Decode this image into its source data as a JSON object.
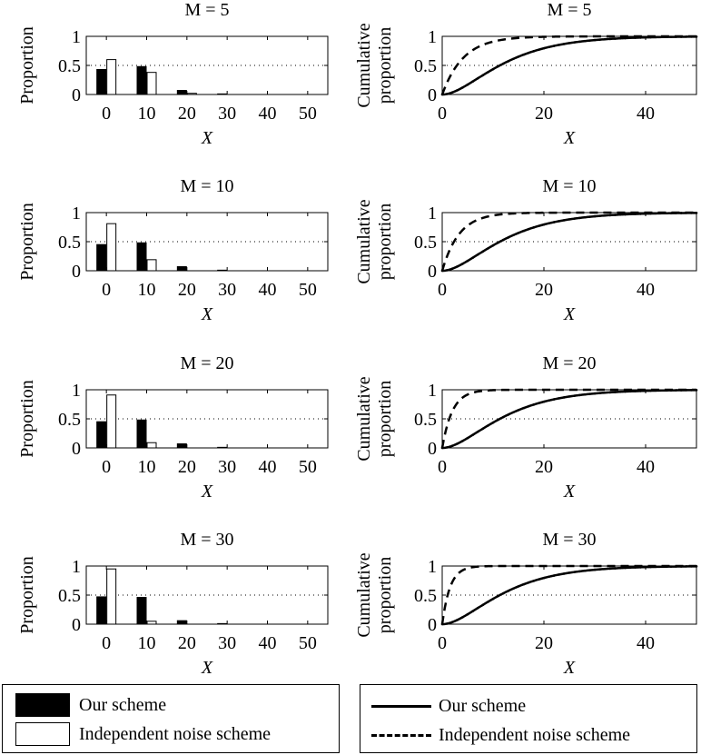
{
  "chart_data": [
    {
      "type": "bar",
      "title": "M = 5",
      "xlabel": "X",
      "ylabel": "Proportion",
      "x_ticks": [
        "0",
        "10",
        "20",
        "30",
        "40",
        "50"
      ],
      "y_ticks": [
        "0",
        "0.5",
        "1"
      ],
      "xlim": [
        -5,
        55
      ],
      "ylim": [
        0,
        1
      ],
      "grid": "dotted at 0.5",
      "categories": [
        0,
        10,
        20,
        30
      ],
      "series": [
        {
          "name": "Our scheme",
          "values": [
            0.43,
            0.48,
            0.07,
            0.01
          ]
        },
        {
          "name": "Independent noise scheme",
          "values": [
            0.6,
            0.38,
            0.02,
            0.0
          ]
        }
      ]
    },
    {
      "type": "line",
      "title": "M = 5",
      "xlabel": "X",
      "ylabel": "Cumulative proportion",
      "x_ticks": [
        "0",
        "20",
        "40"
      ],
      "y_ticks": [
        "0",
        "0.5",
        "1"
      ],
      "xlim": [
        0,
        50
      ],
      "ylim": [
        0,
        1
      ],
      "grid": "dotted at 0.5",
      "series": [
        {
          "name": "Our scheme",
          "rate": 0.148
        },
        {
          "name": "Independent noise scheme",
          "rate": 0.24
        }
      ]
    },
    {
      "type": "bar",
      "title": "M = 10",
      "xlabel": "X",
      "ylabel": "Proportion",
      "x_ticks": [
        "0",
        "10",
        "20",
        "30",
        "40",
        "50"
      ],
      "y_ticks": [
        "0",
        "0.5",
        "1"
      ],
      "xlim": [
        -5,
        55
      ],
      "ylim": [
        0,
        1
      ],
      "grid": "dotted at 0.5",
      "categories": [
        0,
        10,
        20,
        30
      ],
      "series": [
        {
          "name": "Our scheme",
          "values": [
            0.45,
            0.48,
            0.07,
            0.01
          ]
        },
        {
          "name": "Independent noise scheme",
          "values": [
            0.81,
            0.19,
            0.0,
            0.0
          ]
        }
      ]
    },
    {
      "type": "line",
      "title": "M = 10",
      "xlabel": "X",
      "ylabel": "Cumulative proportion",
      "x_ticks": [
        "0",
        "20",
        "40"
      ],
      "y_ticks": [
        "0",
        "0.5",
        "1"
      ],
      "xlim": [
        0,
        50
      ],
      "ylim": [
        0,
        1
      ],
      "grid": "dotted at 0.5",
      "series": [
        {
          "name": "Our scheme",
          "rate": 0.148
        },
        {
          "name": "Independent noise scheme",
          "rate": 0.3
        }
      ]
    },
    {
      "type": "bar",
      "title": "M = 20",
      "xlabel": "X",
      "ylabel": "Proportion",
      "x_ticks": [
        "0",
        "10",
        "20",
        "30",
        "40",
        "50"
      ],
      "y_ticks": [
        "0",
        "0.5",
        "1"
      ],
      "xlim": [
        -5,
        55
      ],
      "ylim": [
        0,
        1
      ],
      "grid": "dotted at 0.5",
      "categories": [
        0,
        10,
        20,
        30
      ],
      "series": [
        {
          "name": "Our scheme",
          "values": [
            0.45,
            0.48,
            0.07,
            0.01
          ]
        },
        {
          "name": "Independent noise scheme",
          "values": [
            0.91,
            0.09,
            0.0,
            0.0
          ]
        }
      ]
    },
    {
      "type": "line",
      "title": "M = 20",
      "xlabel": "X",
      "ylabel": "Cumulative proportion",
      "x_ticks": [
        "0",
        "20",
        "40"
      ],
      "y_ticks": [
        "0",
        "0.5",
        "1"
      ],
      "xlim": [
        0,
        50
      ],
      "ylim": [
        0,
        1
      ],
      "grid": "dotted at 0.5",
      "series": [
        {
          "name": "Our scheme",
          "rate": 0.148
        },
        {
          "name": "Independent noise scheme",
          "rate": 0.5
        }
      ]
    },
    {
      "type": "bar",
      "title": "M = 30",
      "xlabel": "X",
      "ylabel": "Proportion",
      "x_ticks": [
        "0",
        "10",
        "20",
        "30",
        "40",
        "50"
      ],
      "y_ticks": [
        "0",
        "0.5",
        "1"
      ],
      "xlim": [
        -5,
        55
      ],
      "ylim": [
        0,
        1
      ],
      "grid": "dotted at 0.5",
      "categories": [
        0,
        10,
        20,
        30
      ],
      "series": [
        {
          "name": "Our scheme",
          "values": [
            0.47,
            0.46,
            0.06,
            0.01
          ]
        },
        {
          "name": "Independent noise scheme",
          "values": [
            0.95,
            0.05,
            0.0,
            0.0
          ]
        }
      ]
    },
    {
      "type": "line",
      "title": "M = 30",
      "xlabel": "X",
      "ylabel": "Cumulative proportion",
      "x_ticks": [
        "0",
        "20",
        "40"
      ],
      "y_ticks": [
        "0",
        "0.5",
        "1"
      ],
      "xlim": [
        0,
        50
      ],
      "ylim": [
        0,
        1
      ],
      "grid": "dotted at 0.5",
      "series": [
        {
          "name": "Our scheme",
          "rate": 0.148
        },
        {
          "name": "Independent noise scheme",
          "rate": 0.65
        }
      ]
    }
  ],
  "legends": {
    "bar": {
      "filled": "Our scheme",
      "empty": "Independent noise scheme"
    },
    "line": {
      "solid": "Our scheme",
      "dashed": "Independent noise scheme"
    }
  },
  "colors": {
    "our_scheme": "#000000",
    "independent": "#ffffff",
    "axis": "#000000"
  }
}
